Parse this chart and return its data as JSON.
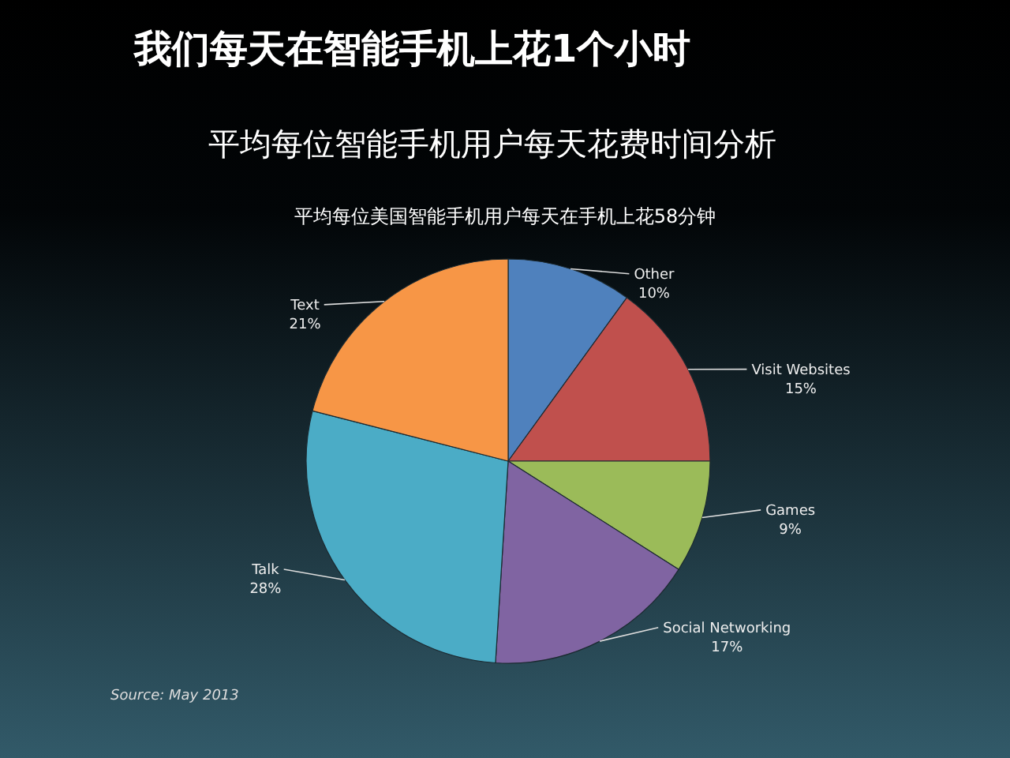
{
  "chart_data": {
    "type": "pie",
    "title": "我们每天在智能手机上花1个小时",
    "subtitle": "平均每位智能手机用户每天花费时间分析",
    "annotations": [
      "平均每位美国智能手机用户每天在手机上花58分钟",
      "Source: May 2013"
    ],
    "categories": [
      "Other",
      "Visit Websites",
      "Games",
      "Social Networking",
      "Talk",
      "Text"
    ],
    "values": [
      10,
      15,
      9,
      17,
      28,
      21
    ],
    "colors": [
      "#4f81bd",
      "#c0504d",
      "#9bbb59",
      "#8064a2",
      "#4bacc6",
      "#f79646"
    ],
    "value_labels": [
      "10%",
      "15%",
      "9%",
      "17%",
      "28%",
      "21%"
    ]
  }
}
